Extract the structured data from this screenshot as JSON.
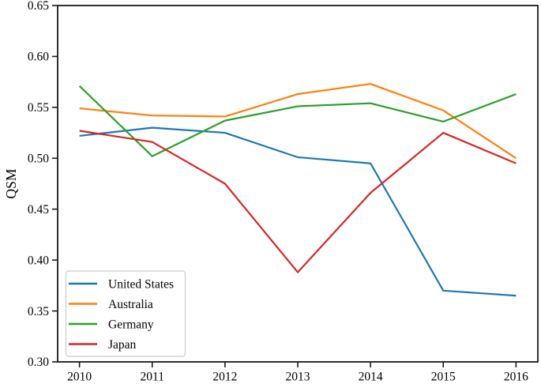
{
  "chart_data": {
    "type": "line",
    "title": "",
    "xlabel": "",
    "ylabel": "QSM",
    "x": [
      2010,
      2011,
      2012,
      2013,
      2014,
      2015,
      2016
    ],
    "series": [
      {
        "name": "United States",
        "color": "#1f77b4",
        "values": [
          0.522,
          0.53,
          0.525,
          0.501,
          0.495,
          0.37,
          0.365
        ]
      },
      {
        "name": "Australia",
        "color": "#ff7f0e",
        "values": [
          0.549,
          0.542,
          0.541,
          0.563,
          0.573,
          0.547,
          0.5
        ]
      },
      {
        "name": "Germany",
        "color": "#2ca02c",
        "values": [
          0.571,
          0.502,
          0.537,
          0.551,
          0.554,
          0.536,
          0.563
        ]
      },
      {
        "name": "Japan",
        "color": "#d62728",
        "values": [
          0.527,
          0.516,
          0.475,
          0.388,
          0.466,
          0.525,
          0.495
        ]
      }
    ],
    "xticks": [
      2010,
      2011,
      2012,
      2013,
      2014,
      2015,
      2016
    ],
    "yticks": [
      0.3,
      0.35,
      0.4,
      0.45,
      0.5,
      0.55,
      0.6,
      0.65
    ],
    "xlim": [
      2009.7,
      2016.3
    ],
    "ylim": [
      0.3,
      0.65
    ],
    "grid": false,
    "legend_position": "lower left",
    "spine_color": "#1a1a1a",
    "legend_border_color": "#cccccc"
  }
}
